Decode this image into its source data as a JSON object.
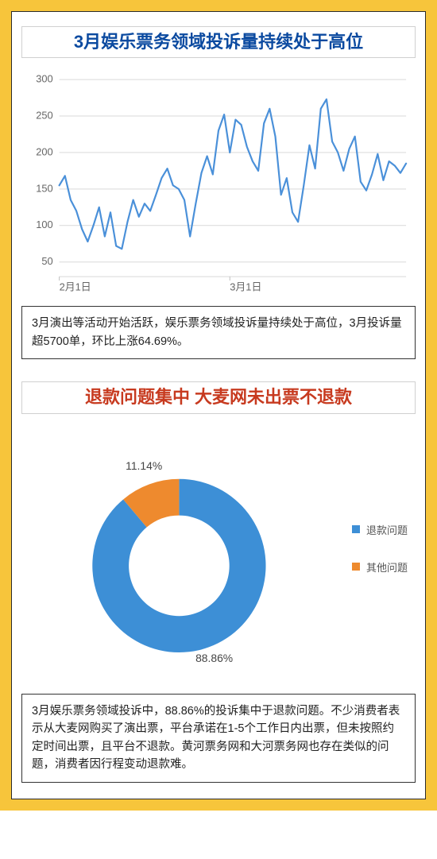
{
  "frame": {
    "outer_bg": "#f7c53b",
    "inner_bg": "#ffffff",
    "inner_border": "#2b2b2b"
  },
  "section1": {
    "title": "3月娱乐票务领域投诉量持续处于高位",
    "title_color": "#0b4aa0",
    "title_fontsize": 22,
    "caption": "3月演出等活动开始活跃，娱乐票务领域投诉量持续处于高位，3月投诉量超5700单，环比上涨64.69%。",
    "line_chart": {
      "type": "line",
      "yticks": [
        50,
        100,
        150,
        200,
        250,
        300
      ],
      "ylim": [
        30,
        300
      ],
      "xticks": [
        {
          "idx": 0,
          "label": "2月1日"
        },
        {
          "idx": 30,
          "label": "3月1日"
        }
      ],
      "grid_color": "#d9d9d9",
      "axis_color": "#bfbfbf",
      "line_color": "#4a90d9",
      "line_width": 2.2,
      "background": "#ffffff",
      "values": [
        155,
        168,
        135,
        120,
        95,
        78,
        100,
        125,
        85,
        118,
        72,
        68,
        105,
        135,
        112,
        130,
        120,
        142,
        165,
        178,
        155,
        150,
        135,
        85,
        130,
        172,
        195,
        170,
        230,
        252,
        200,
        245,
        238,
        208,
        188,
        175,
        240,
        260,
        222,
        142,
        165,
        118,
        105,
        155,
        210,
        178,
        260,
        273,
        215,
        200,
        175,
        205,
        222,
        160,
        148,
        170,
        198,
        162,
        188,
        182,
        172,
        185
      ]
    }
  },
  "section2": {
    "title": "退款问题集中 大麦网未出票不退款",
    "title_color": "#c73a1f",
    "title_fontsize": 22,
    "caption": "3月娱乐票务领域投诉中，88.86%的投诉集中于退款问题。不少消费者表示从大麦网购买了演出票，平台承诺在1-5个工作日内出票，但未按照约定时间出票，且平台不退款。黄河票务网和大河票务网也存在类似的问题，消费者因行程变动退款难。",
    "donut": {
      "type": "donut",
      "slices": [
        {
          "label": "退款问题",
          "value": 88.86,
          "color": "#3d8fd6",
          "display": "88.86%"
        },
        {
          "label": "其他问题",
          "value": 11.14,
          "color": "#ee8a2e",
          "display": "11.14%"
        }
      ],
      "inner_radius_ratio": 0.58,
      "start_angle_deg": -90,
      "label_fontsize": 14,
      "background": "#ffffff"
    }
  }
}
